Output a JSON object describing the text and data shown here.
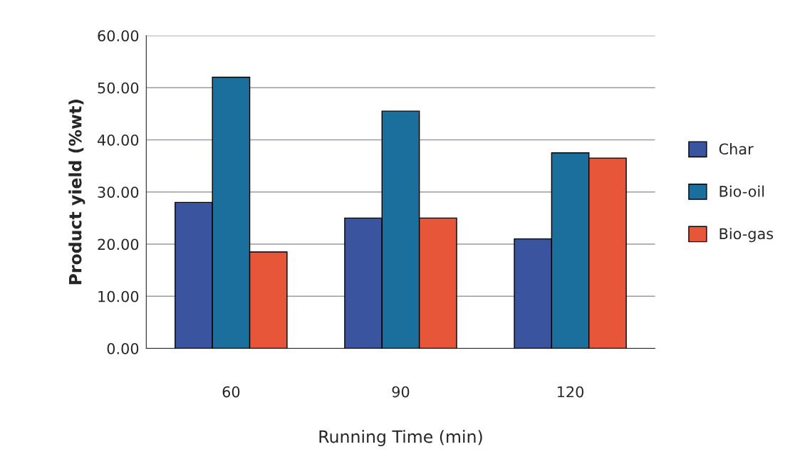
{
  "chart_data": {
    "type": "bar",
    "xlabel": "Running Time (min)",
    "ylabel": "Product yield (%wt)",
    "categories": [
      "60",
      "90",
      "120"
    ],
    "series": [
      {
        "name": "Char",
        "color": "#3a54a0",
        "values": [
          28,
          25,
          21
        ]
      },
      {
        "name": "Bio-oil",
        "color": "#1a6f9c",
        "values": [
          52,
          45.5,
          37.5
        ]
      },
      {
        "name": "Bio-gas",
        "color": "#e8563a",
        "values": [
          18.5,
          25,
          36.5
        ]
      }
    ],
    "ylim": [
      0,
      60
    ],
    "yticks": [
      {
        "value": 0,
        "label": "0.00"
      },
      {
        "value": 10,
        "label": "10.00"
      },
      {
        "value": 20,
        "label": "20.00"
      },
      {
        "value": 30,
        "label": "30.00"
      },
      {
        "value": 40,
        "label": "40.00"
      },
      {
        "value": 50,
        "label": "50.00"
      },
      {
        "value": 60,
        "label": "60.00"
      }
    ],
    "grid": "y",
    "legend": "right"
  }
}
